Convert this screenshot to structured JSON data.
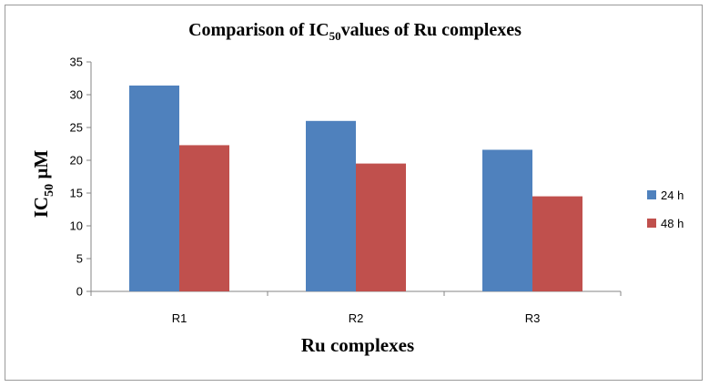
{
  "chart_data": {
    "type": "bar",
    "title": {
      "prefix": "Comparison of IC",
      "subscript": "50",
      "suffix": "values of Ru complexes"
    },
    "xlabel": "Ru complexes",
    "ylabel": {
      "prefix": "IC",
      "subscript": "50",
      "suffix": " µM"
    },
    "categories": [
      "R1",
      "R2",
      "R3"
    ],
    "series": [
      {
        "name": "24 h",
        "color": "#4F81BD",
        "values": [
          31.4,
          26.0,
          21.6
        ]
      },
      {
        "name": "48 h",
        "color": "#C0504D",
        "values": [
          22.3,
          19.5,
          14.5
        ]
      }
    ],
    "ylim": [
      0,
      35
    ],
    "yticks": [
      0,
      5,
      10,
      15,
      20,
      25,
      30,
      35
    ],
    "grid": false,
    "legend": "right"
  }
}
